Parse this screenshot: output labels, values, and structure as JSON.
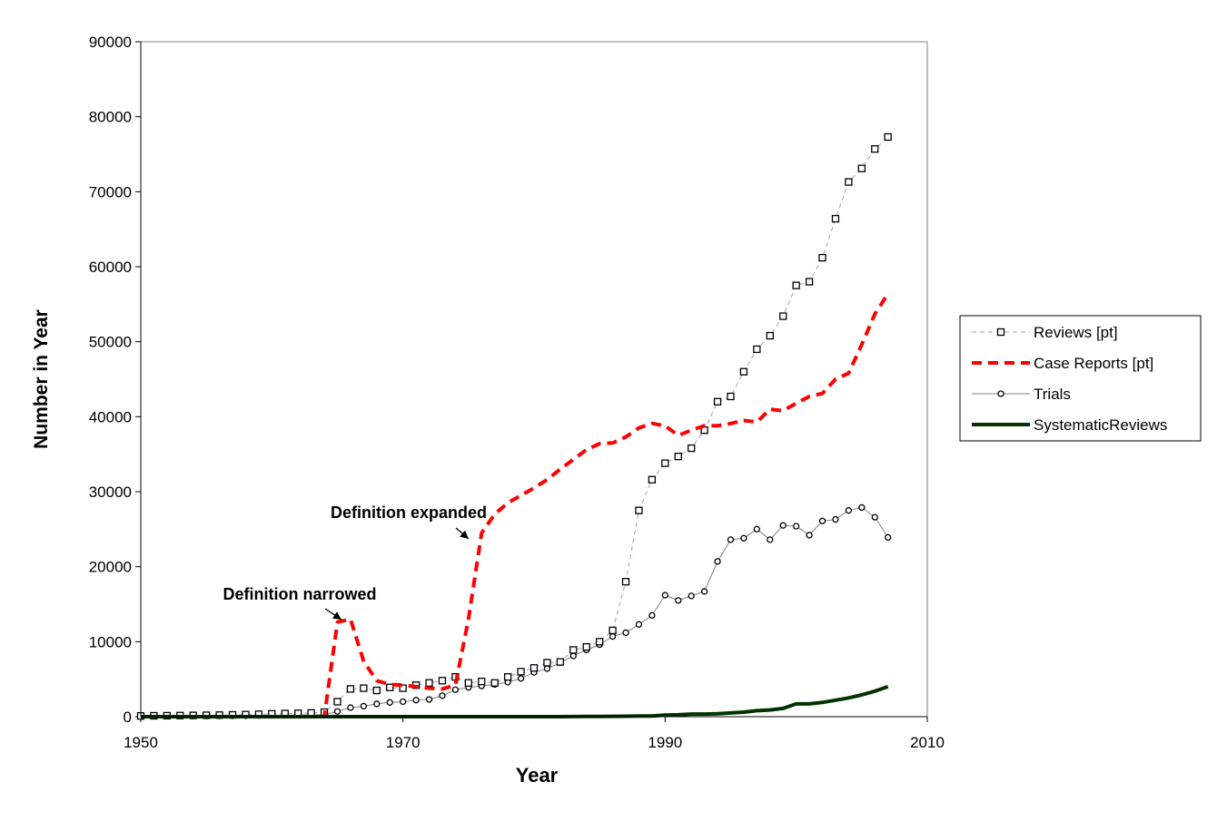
{
  "chart_data": {
    "type": "line",
    "xlabel": "Year",
    "ylabel": "Number in Year",
    "xlim": [
      1950,
      2010
    ],
    "ylim": [
      0,
      90000
    ],
    "xticks": [
      "1950",
      "1970",
      "1990",
      "2010"
    ],
    "yticks": [
      "0",
      "10000",
      "20000",
      "30000",
      "40000",
      "50000",
      "60000",
      "70000",
      "80000",
      "90000"
    ],
    "grid": false,
    "legend_position": "right",
    "series": [
      {
        "name": "Reviews [pt]",
        "color": "#9aa0c8",
        "style": "thin-dashed-square-markers",
        "x": [
          1950,
          1951,
          1952,
          1953,
          1954,
          1955,
          1956,
          1957,
          1958,
          1959,
          1960,
          1961,
          1962,
          1963,
          1964,
          1965,
          1966,
          1967,
          1968,
          1969,
          1970,
          1971,
          1972,
          1973,
          1974,
          1975,
          1976,
          1977,
          1978,
          1979,
          1980,
          1981,
          1982,
          1983,
          1984,
          1985,
          1986,
          1987,
          1988,
          1989,
          1990,
          1991,
          1992,
          1993,
          1994,
          1995,
          1996,
          1997,
          1998,
          1999,
          2000,
          2001,
          2002,
          2003,
          2004,
          2005,
          2006,
          2007
        ],
        "values": [
          100,
          120,
          130,
          150,
          170,
          190,
          210,
          240,
          280,
          320,
          380,
          420,
          450,
          500,
          600,
          2000,
          3700,
          3800,
          3500,
          3900,
          3800,
          4200,
          4500,
          4800,
          5300,
          4500,
          4700,
          4500,
          5300,
          6000,
          6500,
          7200,
          7300,
          8900,
          9300,
          10000,
          11500,
          18000,
          27500,
          31600,
          33800,
          34700,
          35800,
          38200,
          42000,
          42700,
          46000,
          49000,
          50800,
          53400,
          57500,
          58000,
          61200,
          66400,
          71300,
          73100,
          75700,
          77300
        ]
      },
      {
        "name": "Case Reports [pt]",
        "color": "#ff0000",
        "style": "thick-dashed",
        "x": [
          1950,
          1951,
          1952,
          1953,
          1954,
          1955,
          1956,
          1957,
          1958,
          1959,
          1960,
          1961,
          1962,
          1963,
          1964,
          1965,
          1966,
          1967,
          1968,
          1969,
          1970,
          1971,
          1972,
          1973,
          1974,
          1975,
          1976,
          1977,
          1978,
          1979,
          1980,
          1981,
          1982,
          1983,
          1984,
          1985,
          1986,
          1987,
          1988,
          1989,
          1990,
          1991,
          1992,
          1993,
          1994,
          1995,
          1996,
          1997,
          1998,
          1999,
          2000,
          2001,
          2002,
          2003,
          2004,
          2005,
          2006,
          2007
        ],
        "values": [
          0,
          0,
          0,
          0,
          0,
          0,
          0,
          0,
          0,
          0,
          0,
          0,
          0,
          0,
          0,
          12600,
          13000,
          7400,
          4800,
          4300,
          4200,
          4000,
          3800,
          3700,
          4200,
          13000,
          24500,
          27000,
          28500,
          29500,
          30500,
          31600,
          33000,
          34300,
          35600,
          36400,
          36500,
          37300,
          38500,
          39100,
          38800,
          37500,
          38200,
          38800,
          38800,
          39100,
          39500,
          39300,
          41000,
          40800,
          41800,
          42700,
          43100,
          45000,
          45800,
          49600,
          53700,
          56400
        ]
      },
      {
        "name": "Trials",
        "color": "#808080",
        "style": "thin-solid-circle-markers",
        "x": [
          1950,
          1951,
          1952,
          1953,
          1954,
          1955,
          1956,
          1957,
          1958,
          1959,
          1960,
          1961,
          1962,
          1963,
          1964,
          1965,
          1966,
          1967,
          1968,
          1969,
          1970,
          1971,
          1972,
          1973,
          1974,
          1975,
          1976,
          1977,
          1978,
          1979,
          1980,
          1981,
          1982,
          1983,
          1984,
          1985,
          1986,
          1987,
          1988,
          1989,
          1990,
          1991,
          1992,
          1993,
          1994,
          1995,
          1996,
          1997,
          1998,
          1999,
          2000,
          2001,
          2002,
          2003,
          2004,
          2005,
          2006,
          2007
        ],
        "values": [
          50,
          60,
          70,
          80,
          90,
          100,
          110,
          120,
          130,
          150,
          170,
          190,
          210,
          230,
          250,
          700,
          1200,
          1400,
          1700,
          1900,
          2000,
          2200,
          2300,
          2800,
          3600,
          3900,
          4100,
          4300,
          4600,
          5100,
          5900,
          6400,
          7200,
          8100,
          8900,
          9600,
          10700,
          11200,
          12300,
          13500,
          16200,
          15500,
          16100,
          16700,
          20700,
          23600,
          23800,
          25000,
          23600,
          25500,
          25400,
          24200,
          26100,
          26300,
          27500,
          27900,
          26600,
          23900
        ]
      },
      {
        "name": "SystematicReviews",
        "color": "#003300",
        "style": "thick-solid",
        "x": [
          1950,
          1951,
          1952,
          1953,
          1954,
          1955,
          1956,
          1957,
          1958,
          1959,
          1960,
          1961,
          1962,
          1963,
          1964,
          1965,
          1966,
          1967,
          1968,
          1969,
          1970,
          1971,
          1972,
          1973,
          1974,
          1975,
          1976,
          1977,
          1978,
          1979,
          1980,
          1981,
          1982,
          1983,
          1984,
          1985,
          1986,
          1987,
          1988,
          1989,
          1990,
          1991,
          1992,
          1993,
          1994,
          1995,
          1996,
          1997,
          1998,
          1999,
          2000,
          2001,
          2002,
          2003,
          2004,
          2005,
          2006,
          2007
        ],
        "values": [
          0,
          0,
          0,
          0,
          0,
          0,
          0,
          0,
          0,
          0,
          0,
          0,
          0,
          0,
          0,
          0,
          0,
          0,
          0,
          0,
          0,
          0,
          0,
          0,
          0,
          0,
          0,
          0,
          0,
          0,
          0,
          0,
          0,
          10,
          30,
          40,
          50,
          60,
          80,
          100,
          200,
          250,
          350,
          350,
          400,
          500,
          600,
          800,
          900,
          1100,
          1700,
          1700,
          1900,
          2200,
          2500,
          2900,
          3400,
          4000
        ]
      }
    ],
    "annotations": [
      {
        "text": "Definition narrowed",
        "target_x": 1965,
        "target_y": 12600
      },
      {
        "text": "Definition expanded",
        "target_x": 1976,
        "target_y": 24500
      }
    ]
  }
}
